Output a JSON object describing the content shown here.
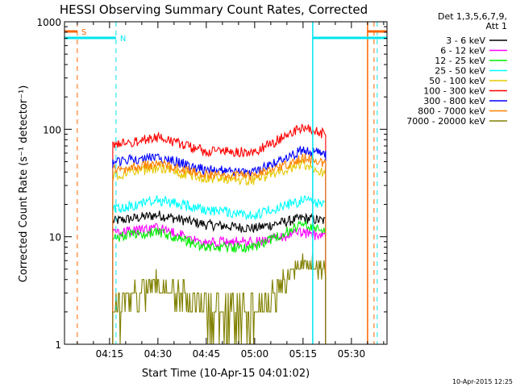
{
  "chart_data": {
    "type": "line",
    "title": "HESSI Observing Summary Count Rates, Corrected",
    "xlabel": "Start Time (10-Apr-15 04:01:02)",
    "ylabel": "Corrected Count Rate (s⁻¹ detector⁻¹)",
    "yscale": "log",
    "ylim": [
      1,
      1000
    ],
    "xlim": [
      "04:01:02",
      "05:41:02"
    ],
    "x_ticks": [
      "04:15",
      "04:30",
      "04:45",
      "05:00",
      "05:15",
      "05:30"
    ],
    "y_ticks": [
      "1",
      "10",
      "100",
      "1000"
    ],
    "grid": false,
    "legend_position": "right",
    "legend_header": [
      "Det 1,3,5,6,7,9,",
      "Att 1"
    ],
    "flags": [
      {
        "label": "S",
        "color": "#ff6600"
      },
      {
        "label": "N",
        "color": "#00e5ee"
      }
    ],
    "series": [
      {
        "name": "3 - 6 keV",
        "color": "#000000",
        "x": [
          "04:16",
          "04:30",
          "04:45",
          "05:00",
          "05:15",
          "05:22"
        ],
        "values": [
          14,
          16,
          13,
          12,
          15,
          14
        ]
      },
      {
        "name": "6 - 12 keV",
        "color": "#ff00ff",
        "x": [
          "04:16",
          "04:30",
          "04:45",
          "05:00",
          "05:15",
          "05:22"
        ],
        "values": [
          11,
          12,
          9,
          9,
          11,
          10
        ]
      },
      {
        "name": "12 - 25 keV",
        "color": "#00ee00",
        "x": [
          "04:16",
          "04:30",
          "04:45",
          "05:00",
          "05:15",
          "05:22"
        ],
        "values": [
          10,
          11,
          8,
          8,
          13,
          12
        ]
      },
      {
        "name": "25 - 50 keV",
        "color": "#00ffff",
        "x": [
          "04:16",
          "04:30",
          "04:45",
          "05:00",
          "05:15",
          "05:22"
        ],
        "values": [
          18,
          22,
          18,
          16,
          22,
          20
        ]
      },
      {
        "name": "50 - 100 keV",
        "color": "#e6c800",
        "x": [
          "04:16",
          "04:30",
          "04:45",
          "05:00",
          "05:15",
          "05:22"
        ],
        "values": [
          37,
          44,
          35,
          34,
          48,
          40
        ]
      },
      {
        "name": "100 - 300 keV",
        "color": "#ff0000",
        "x": [
          "04:16",
          "04:30",
          "04:45",
          "05:00",
          "05:15",
          "05:22"
        ],
        "values": [
          70,
          85,
          62,
          62,
          105,
          90
        ]
      },
      {
        "name": "300 - 800 keV",
        "color": "#0000ff",
        "x": [
          "04:16",
          "04:30",
          "04:45",
          "05:00",
          "05:15",
          "05:22"
        ],
        "values": [
          50,
          56,
          42,
          40,
          65,
          58
        ]
      },
      {
        "name": "800 - 7000 keV",
        "color": "#ff8000",
        "x": [
          "04:16",
          "04:30",
          "04:45",
          "05:00",
          "05:15",
          "05:22"
        ],
        "values": [
          42,
          48,
          38,
          37,
          55,
          48
        ]
      },
      {
        "name": "7000 - 20000 keV",
        "color": "#808000",
        "x": [
          "04:16",
          "04:30",
          "04:45",
          "05:00",
          "05:15",
          "05:22"
        ],
        "values": [
          2,
          4,
          2,
          2,
          6,
          5
        ]
      }
    ]
  },
  "footer": {
    "timestamp": "10-Apr-2015 12:25"
  }
}
